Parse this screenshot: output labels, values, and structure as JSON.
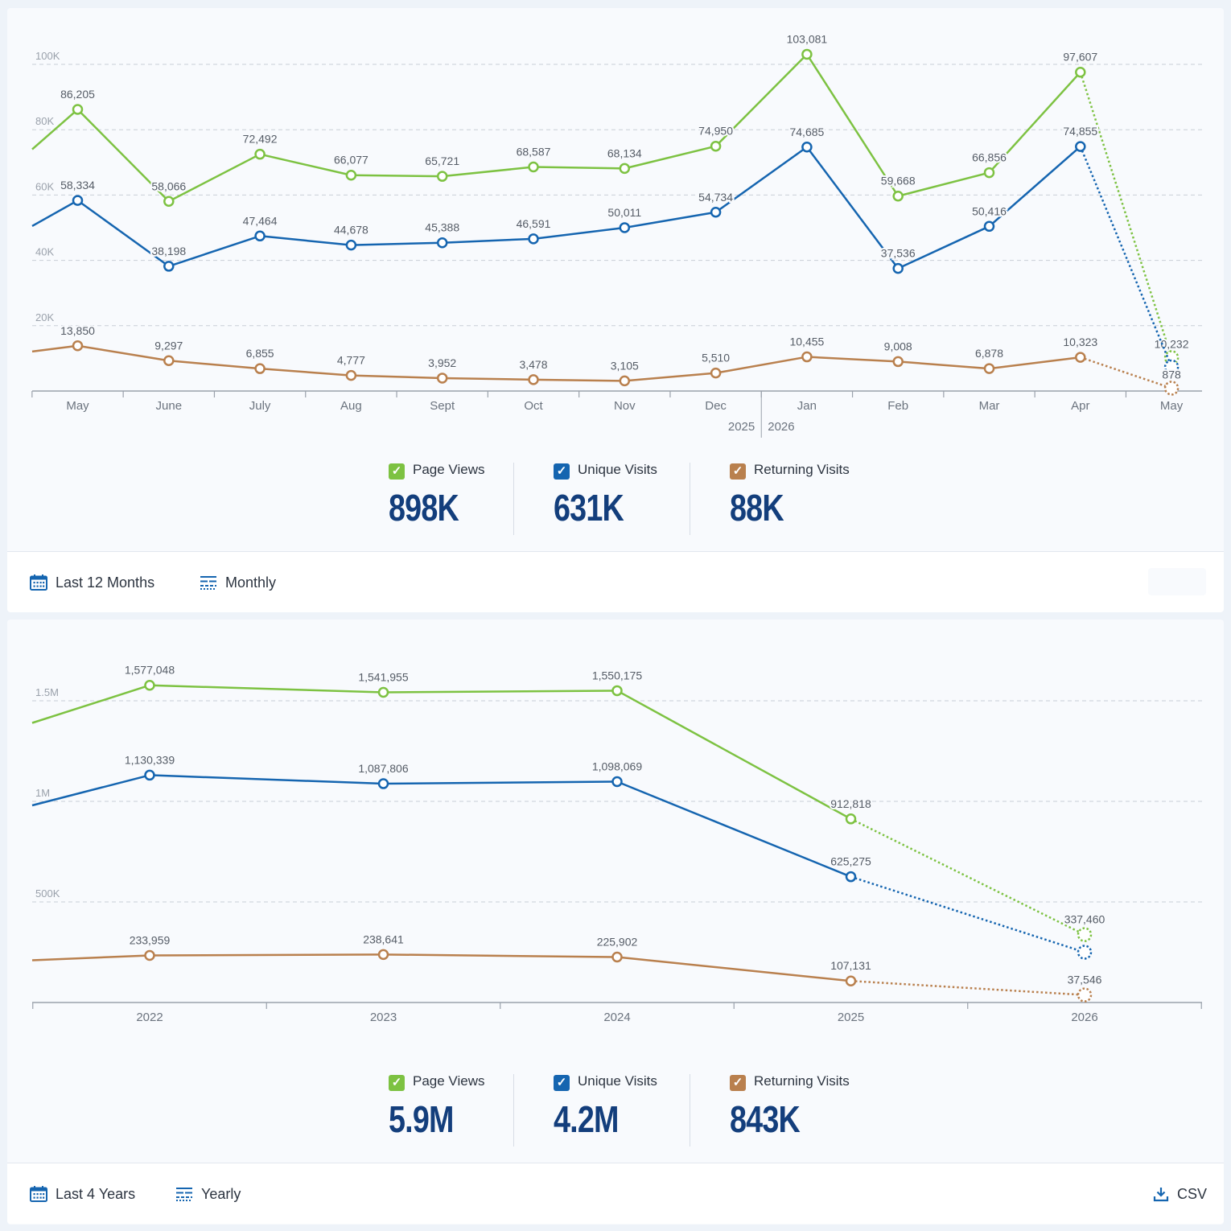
{
  "colors": {
    "page_views": "#7dc242",
    "unique_visits": "#1565b0",
    "returning_visits": "#b9804e"
  },
  "monthly": {
    "chart_data": {
      "type": "line",
      "categories": [
        "May",
        "June",
        "July",
        "Aug",
        "Sept",
        "Oct",
        "Nov",
        "Dec",
        "Jan",
        "Feb",
        "Mar",
        "Apr",
        "May"
      ],
      "year_labels": [
        "2025",
        "2026"
      ],
      "year_break_after": "Dec",
      "ylim": [
        0,
        100000
      ],
      "yticks": [
        20000,
        40000,
        60000,
        80000,
        100000
      ],
      "ytick_labels": [
        "20K",
        "40K",
        "60K",
        "80K",
        "100K"
      ],
      "grid": true,
      "partial_last_point": true,
      "series": [
        {
          "name": "Page Views",
          "color": "#7dc242",
          "values": [
            86205,
            58066,
            72492,
            66077,
            65721,
            68587,
            68134,
            74950,
            103081,
            59668,
            66856,
            97607,
            10232
          ],
          "labels": [
            "86,205",
            "58,066",
            "72,492",
            "66,077",
            "65,721",
            "68,587",
            "68,134",
            "74,950",
            "103,081",
            "59,668",
            "66,856",
            "97,607",
            "10,232"
          ]
        },
        {
          "name": "Unique Visits",
          "color": "#1565b0",
          "values": [
            58334,
            38198,
            47464,
            44678,
            45388,
            46591,
            50011,
            54734,
            74685,
            37536,
            50416,
            74855,
            7400
          ],
          "labels": [
            "58,334",
            "38,198",
            "47,464",
            "44,678",
            "45,388",
            "46,591",
            "50,011",
            "54,734",
            "74,685",
            "37,536",
            "50,416",
            "74,855",
            ""
          ]
        },
        {
          "name": "Returning Visits",
          "color": "#b9804e",
          "values": [
            13850,
            9297,
            6855,
            4777,
            3952,
            3478,
            3105,
            5510,
            10455,
            9008,
            6878,
            10323,
            878
          ],
          "labels": [
            "13,850",
            "9,297",
            "6,855",
            "4,777",
            "3,952",
            "3,478",
            "3,105",
            "5,510",
            "10,455",
            "9,008",
            "6,878",
            "10,323",
            "878"
          ]
        }
      ]
    },
    "totals": [
      {
        "label": "Page Views",
        "value": "898K"
      },
      {
        "label": "Unique Visits",
        "value": "631K"
      },
      {
        "label": "Returning Visits",
        "value": "88K"
      }
    ],
    "footer": {
      "range_label": "Last 12 Months",
      "interval_label": "Monthly"
    }
  },
  "yearly": {
    "chart_data": {
      "type": "line",
      "categories": [
        "2022",
        "2023",
        "2024",
        "2025",
        "2026"
      ],
      "ylim": [
        0,
        1600000
      ],
      "yticks": [
        500000,
        1000000,
        1500000
      ],
      "ytick_labels": [
        "500K",
        "1M",
        "1.5M"
      ],
      "grid": true,
      "partial_last_point": true,
      "series": [
        {
          "name": "Page Views",
          "color": "#7dc242",
          "values": [
            1577048,
            1541955,
            1550175,
            912818,
            337460
          ],
          "labels": [
            "1,577,048",
            "1,541,955",
            "1,550,175",
            "912,818",
            "337,460"
          ]
        },
        {
          "name": "Unique Visits",
          "color": "#1565b0",
          "values": [
            1130339,
            1087806,
            1098069,
            625275,
            250000
          ],
          "labels": [
            "1,130,339",
            "1,087,806",
            "1,098,069",
            "625,275",
            ""
          ]
        },
        {
          "name": "Returning Visits",
          "color": "#b9804e",
          "values": [
            233959,
            238641,
            225902,
            107131,
            37546
          ],
          "labels": [
            "233,959",
            "238,641",
            "225,902",
            "107,131",
            "37,546"
          ]
        }
      ]
    },
    "totals": [
      {
        "label": "Page Views",
        "value": "5.9M"
      },
      {
        "label": "Unique Visits",
        "value": "4.2M"
      },
      {
        "label": "Returning Visits",
        "value": "843K"
      }
    ],
    "footer": {
      "range_label": "Last 4 Years",
      "interval_label": "Yearly",
      "csv_label": "CSV"
    }
  }
}
